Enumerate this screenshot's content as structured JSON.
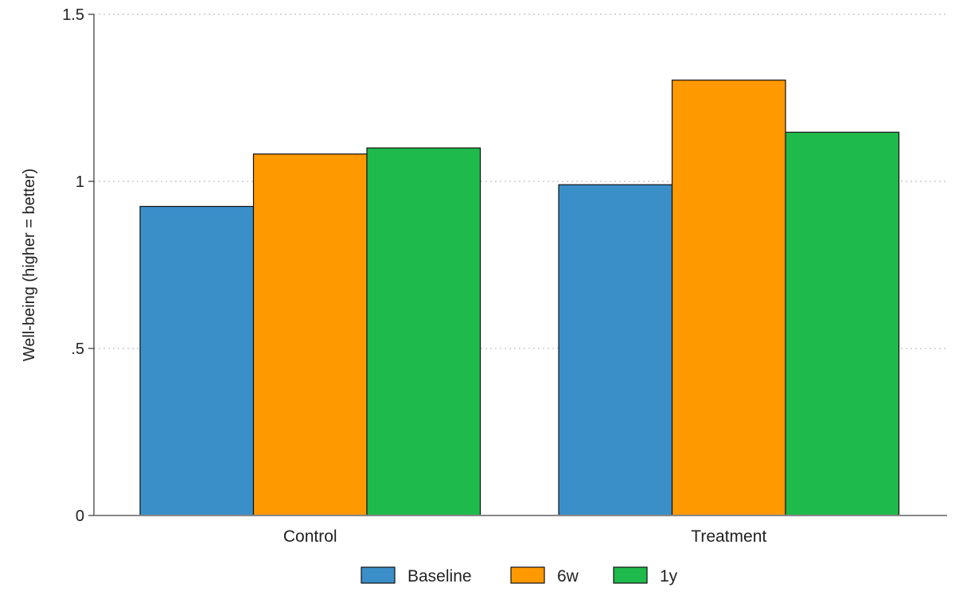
{
  "chart_data": {
    "type": "bar",
    "title": "",
    "xlabel": "",
    "ylabel": "Well-being (higher = better)",
    "categories": [
      "Control",
      "Treatment"
    ],
    "series": [
      {
        "name": "Baseline",
        "values": [
          0.925,
          0.99
        ],
        "color": "#3a8fc9"
      },
      {
        "name": "6w",
        "values": [
          1.082,
          1.303
        ],
        "color": "#ff9900"
      },
      {
        "name": "1y",
        "values": [
          1.1,
          1.147
        ],
        "color": "#1fba4c"
      }
    ],
    "ylim": [
      0,
      1.5
    ],
    "yticks": [
      {
        "value": 0,
        "label": "0"
      },
      {
        "value": 0.5,
        "label": ".5"
      },
      {
        "value": 1,
        "label": "1"
      },
      {
        "value": 1.5,
        "label": "1.5"
      }
    ],
    "grid": true,
    "legend": "bottom"
  }
}
